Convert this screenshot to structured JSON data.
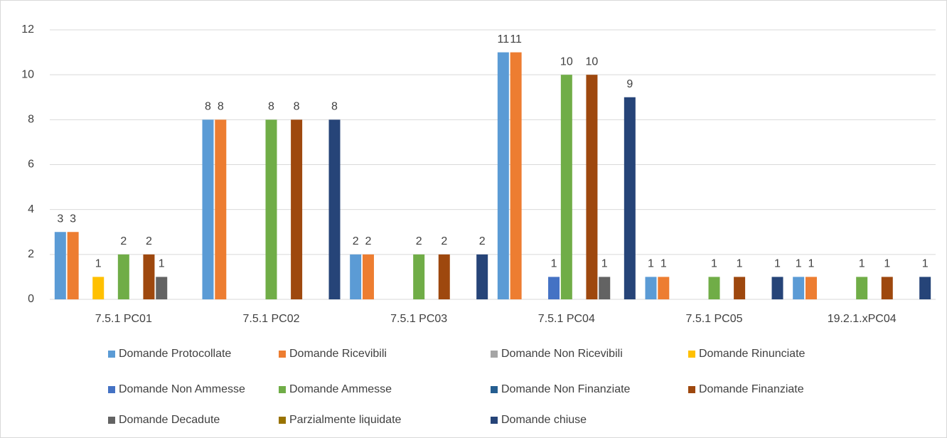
{
  "chart_data": {
    "type": "bar",
    "categories": [
      "7.5.1 PC01",
      "7.5.1 PC02",
      "7.5.1 PC03",
      "7.5.1 PC04",
      "7.5.1 PC05",
      "19.2.1.xPC04"
    ],
    "series": [
      {
        "name": "Domande Protocollate",
        "color": "#5b9bd5",
        "values": [
          3,
          8,
          2,
          11,
          1,
          1
        ]
      },
      {
        "name": "Domande Ricevibili",
        "color": "#ed7d31",
        "values": [
          3,
          8,
          2,
          11,
          1,
          1
        ]
      },
      {
        "name": "Domande Non Ricevibili",
        "color": "#a5a5a5",
        "values": [
          0,
          0,
          0,
          0,
          0,
          0
        ]
      },
      {
        "name": "Domande Rinunciate",
        "color": "#ffc000",
        "values": [
          1,
          0,
          0,
          0,
          0,
          0
        ]
      },
      {
        "name": "Domande Non Ammesse",
        "color": "#4472c4",
        "values": [
          0,
          0,
          0,
          1,
          0,
          0
        ]
      },
      {
        "name": "Domande Ammesse",
        "color": "#70ad47",
        "values": [
          2,
          8,
          2,
          10,
          1,
          1
        ]
      },
      {
        "name": "Domande Non Finanziate",
        "color": "#255e91",
        "values": [
          0,
          0,
          0,
          0,
          0,
          0
        ]
      },
      {
        "name": "Domande Finanziate",
        "color": "#9e480e",
        "values": [
          2,
          8,
          2,
          10,
          1,
          1
        ]
      },
      {
        "name": "Domande Decadute",
        "color": "#636363",
        "values": [
          1,
          0,
          0,
          1,
          0,
          0
        ]
      },
      {
        "name": "Parzialmente liquidate",
        "color": "#997300",
        "values": [
          0,
          0,
          0,
          0,
          0,
          0
        ]
      },
      {
        "name": "Domande chiuse",
        "color": "#264478",
        "values": [
          0,
          8,
          2,
          9,
          1,
          1
        ]
      }
    ],
    "ylim": [
      0,
      12
    ],
    "yticks": [
      0,
      2,
      4,
      6,
      8,
      10,
      12
    ],
    "grid": true,
    "legend": "bottom"
  }
}
